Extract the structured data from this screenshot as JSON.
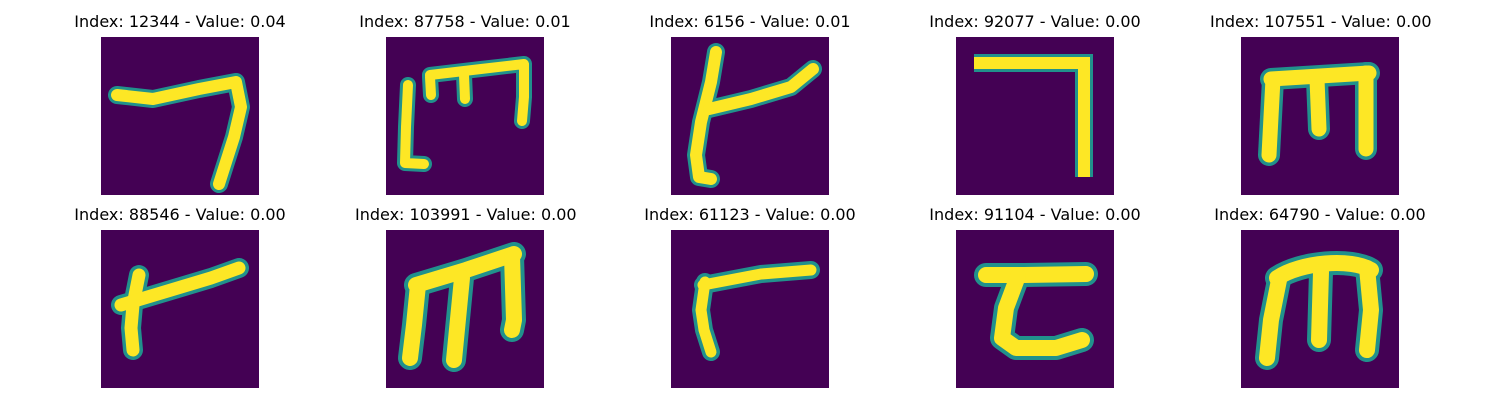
{
  "images": [
    {
      "title": "Index: 12344 - Value: 0.04",
      "glyph": "handwritten-character-sample"
    },
    {
      "title": "Index: 87758 - Value: 0.01",
      "glyph": "handwritten-character-sample"
    },
    {
      "title": "Index: 6156 - Value: 0.01",
      "glyph": "handwritten-character-sample"
    },
    {
      "title": "Index: 92077 - Value: 0.00",
      "glyph": "handwritten-character-sample"
    },
    {
      "title": "Index: 107551 - Value: 0.00",
      "glyph": "handwritten-character-sample"
    },
    {
      "title": "Index: 88546 - Value: 0.00",
      "glyph": "handwritten-character-sample"
    },
    {
      "title": "Index: 103991 - Value: 0.00",
      "glyph": "handwritten-character-sample"
    },
    {
      "title": "Index: 61123 - Value: 0.00",
      "glyph": "handwritten-character-sample"
    },
    {
      "title": "Index: 91104 - Value: 0.00",
      "glyph": "handwritten-character-sample"
    },
    {
      "title": "Index: 64790 - Value: 0.00",
      "glyph": "handwritten-character-sample"
    }
  ],
  "colors": {
    "background": "#440154",
    "mid": "#21918c",
    "stroke": "#fde725"
  }
}
